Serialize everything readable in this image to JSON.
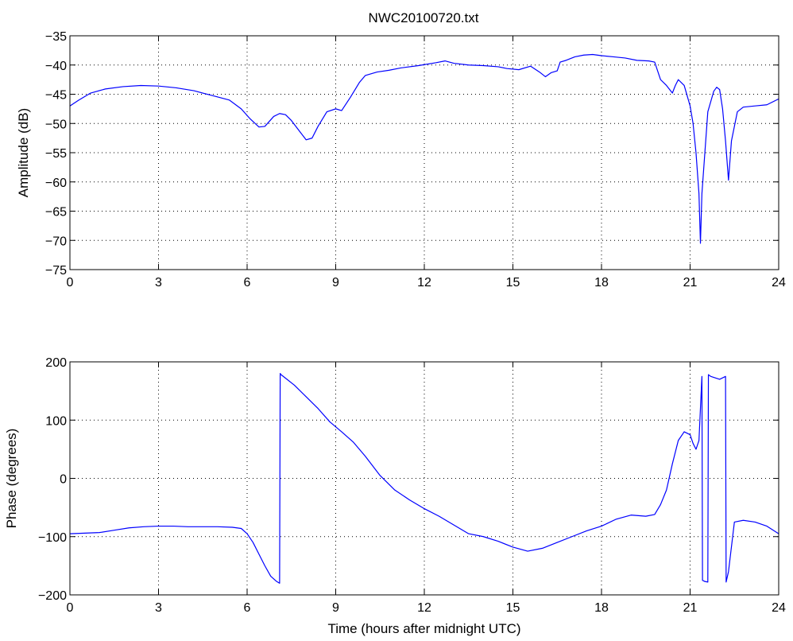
{
  "figure": {
    "title": "NWC20100720.txt"
  },
  "chart_data": [
    {
      "type": "line",
      "name": "amplitude-panel",
      "title": "NWC20100720.txt",
      "xlabel": "",
      "ylabel": "Amplitude (dB)",
      "xlim": [
        0,
        24
      ],
      "ylim": [
        -75,
        -35
      ],
      "xticks": [
        0,
        3,
        6,
        9,
        12,
        15,
        18,
        21,
        24
      ],
      "yticks": [
        -75,
        -70,
        -65,
        -60,
        -55,
        -50,
        -45,
        -40,
        -35
      ],
      "grid": true,
      "color": "#0000ff",
      "series": [
        {
          "x": [
            0,
            0.3,
            0.7,
            1.2,
            1.8,
            2.4,
            3.0,
            3.6,
            4.2,
            4.8,
            5.4,
            5.8,
            6.1,
            6.4,
            6.6,
            6.9,
            7.1,
            7.3,
            7.5,
            7.8,
            8.0,
            8.2,
            8.4,
            8.7,
            9.0,
            9.2,
            9.5,
            9.8,
            10.0,
            10.4,
            10.8,
            11.2,
            11.8,
            12.4,
            12.7,
            13.0,
            13.5,
            14.0,
            14.5,
            14.8,
            15.2,
            15.6,
            15.9,
            16.1,
            16.3,
            16.5,
            16.6,
            16.8,
            17.1,
            17.4,
            17.7,
            18.0,
            18.4,
            18.8,
            19.2,
            19.6,
            19.8,
            20.0,
            20.2,
            20.4,
            20.5,
            20.6,
            20.8,
            21.0,
            21.1,
            21.2,
            21.3,
            21.35,
            21.4,
            21.5,
            21.6,
            21.8,
            21.9,
            22.0,
            22.1,
            22.2,
            22.3,
            22.4,
            22.6,
            22.8,
            23.2,
            23.6,
            24.0
          ],
          "y": [
            -47,
            -46,
            -44.8,
            -44.1,
            -43.7,
            -43.5,
            -43.6,
            -43.9,
            -44.4,
            -45.2,
            -46,
            -47.5,
            -49.2,
            -50.6,
            -50.5,
            -48.8,
            -48.3,
            -48.5,
            -49.5,
            -51.5,
            -52.8,
            -52.5,
            -50.5,
            -48,
            -47.5,
            -47.8,
            -45.5,
            -43,
            -41.8,
            -41.2,
            -40.9,
            -40.5,
            -40.1,
            -39.6,
            -39.3,
            -39.7,
            -40,
            -40.1,
            -40.3,
            -40.6,
            -40.8,
            -40.2,
            -41.2,
            -42,
            -41.3,
            -41,
            -39.5,
            -39.2,
            -38.6,
            -38.3,
            -38.2,
            -38.4,
            -38.6,
            -38.8,
            -39.2,
            -39.3,
            -39.5,
            -42.5,
            -43.5,
            -44.8,
            -43.5,
            -42.5,
            -43.5,
            -47,
            -50,
            -55,
            -62,
            -70.5,
            -62,
            -55,
            -48,
            -44.5,
            -43.8,
            -44.2,
            -47.5,
            -53,
            -59.7,
            -53,
            -48,
            -47.2,
            -47,
            -46.8,
            -45.8
          ]
        }
      ]
    },
    {
      "type": "line",
      "name": "phase-panel",
      "title": "",
      "xlabel": "Time (hours after midnight UTC)",
      "ylabel": "Phase (degrees)",
      "xlim": [
        0,
        24
      ],
      "ylim": [
        -200,
        200
      ],
      "xticks": [
        0,
        3,
        6,
        9,
        12,
        15,
        18,
        21,
        24
      ],
      "yticks": [
        -200,
        -100,
        0,
        100,
        200
      ],
      "grid": true,
      "color": "#0000ff",
      "series": [
        {
          "x": [
            0,
            0.5,
            1.0,
            1.5,
            2.0,
            2.5,
            3.0,
            3.5,
            4.0,
            4.5,
            5.0,
            5.5,
            5.8,
            6.0,
            6.2,
            6.4,
            6.6,
            6.8,
            7.0,
            7.1,
            7.12,
            7.15,
            7.3,
            7.6,
            8.0,
            8.4,
            8.8,
            9.2,
            9.6,
            10.0,
            10.5,
            11.0,
            11.5,
            12.0,
            12.5,
            13.0,
            13.5,
            14.0,
            14.5,
            15.0,
            15.5,
            16.0,
            16.5,
            17.0,
            17.5,
            18.0,
            18.5,
            19.0,
            19.5,
            19.8,
            20.0,
            20.2,
            20.4,
            20.6,
            20.8,
            21.0,
            21.1,
            21.2,
            21.3,
            21.4,
            21.42,
            21.5,
            21.6,
            21.62,
            21.7,
            22.0,
            22.2,
            22.22,
            22.3,
            22.5,
            22.8,
            23.2,
            23.6,
            24.0
          ],
          "y": [
            -95,
            -94,
            -93,
            -89,
            -85,
            -83,
            -82,
            -82,
            -83,
            -83,
            -83,
            -84,
            -86,
            -95,
            -110,
            -130,
            -150,
            -168,
            -177,
            -180,
            180,
            178,
            172,
            160,
            140,
            120,
            97,
            80,
            62,
            38,
            5,
            -20,
            -37,
            -52,
            -65,
            -80,
            -95,
            -100,
            -108,
            -118,
            -125,
            -120,
            -110,
            -100,
            -90,
            -82,
            -70,
            -63,
            -65,
            -62,
            -45,
            -20,
            25,
            65,
            80,
            75,
            60,
            50,
            65,
            175,
            -175,
            -177,
            -178,
            178,
            175,
            170,
            175,
            -178,
            -160,
            -75,
            -72,
            -75,
            -82,
            -95
          ]
        }
      ]
    }
  ]
}
